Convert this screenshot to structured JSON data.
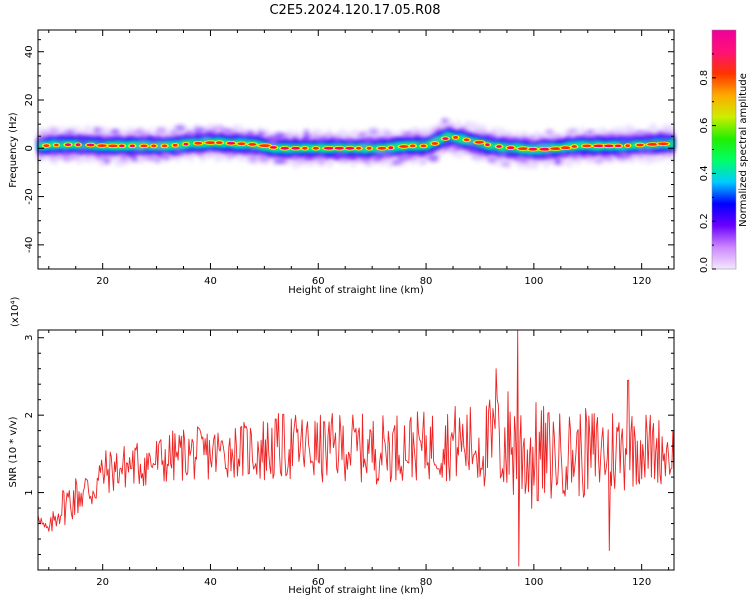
{
  "title": "C2E5.2024.120.17.05.R08",
  "chart_data": [
    {
      "type": "heatmap",
      "xlabel": "Height of straight line (km)",
      "ylabel": "Frequency (Hz)",
      "xlim": [
        8,
        126
      ],
      "ylim": [
        -50,
        49
      ],
      "x_ticks": [
        20,
        40,
        60,
        80,
        100,
        120
      ],
      "y_ticks": [
        -40,
        -20,
        0,
        20,
        40
      ],
      "colorbar": {
        "label": "Normalized spectral amplitude",
        "range": [
          0.0,
          1.0
        ],
        "ticks": [
          0.0,
          0.2,
          0.4,
          0.6,
          0.8
        ],
        "colormap": [
          "#f4e8ff",
          "#cc88ff",
          "#6a00ff",
          "#0000ff",
          "#00ccff",
          "#00ff66",
          "#22ee00",
          "#ccee00",
          "#ffaa00",
          "#ff3300",
          "#ff1177",
          "#ee0099"
        ]
      },
      "ridge": {
        "x": [
          8,
          12,
          16,
          20,
          24,
          28,
          32,
          36,
          40,
          44,
          48,
          52,
          56,
          60,
          64,
          68,
          72,
          76,
          80,
          82,
          84,
          86,
          88,
          92,
          96,
          100,
          104,
          108,
          112,
          116,
          120,
          124,
          126
        ],
        "y": [
          1,
          1.5,
          1.5,
          1,
          1,
          1,
          1,
          2,
          2.5,
          2,
          1.5,
          0,
          0,
          0,
          0,
          0,
          0,
          1,
          1,
          3,
          5,
          4,
          3,
          1,
          0,
          -0.5,
          0,
          1,
          1,
          1,
          1.5,
          2,
          2
        ]
      }
    },
    {
      "type": "line",
      "xlabel": "Height of straight line (km)",
      "ylabel": "SNR (10 * v/v)",
      "y_multiplier": "(x10⁴)",
      "xlim": [
        8,
        126
      ],
      "ylim": [
        0.0,
        3.1
      ],
      "x_ticks": [
        20,
        40,
        60,
        80,
        100,
        120
      ],
      "y_ticks": [
        1,
        2,
        3
      ],
      "series": [
        {
          "color": "#ee2222",
          "x": [
            8,
            9,
            10,
            12,
            14,
            16,
            18,
            20,
            25,
            30,
            35,
            40,
            45,
            50,
            55,
            60,
            65,
            70,
            75,
            80,
            85,
            90,
            95,
            100,
            105,
            110,
            115,
            120,
            126
          ],
          "y": [
            0.75,
            0.55,
            0.5,
            0.8,
            0.9,
            1.0,
            1.05,
            1.25,
            1.35,
            1.4,
            1.5,
            1.5,
            1.55,
            1.55,
            1.6,
            1.55,
            1.6,
            1.55,
            1.6,
            1.6,
            1.65,
            1.6,
            1.65,
            1.45,
            1.5,
            1.5,
            1.55,
            1.6,
            1.5
          ],
          "spread": [
            0.1,
            0.1,
            0.1,
            0.25,
            0.3,
            0.3,
            0.35,
            0.3,
            0.3,
            0.35,
            0.35,
            0.35,
            0.35,
            0.45,
            0.45,
            0.45,
            0.45,
            0.45,
            0.45,
            0.45,
            0.5,
            0.55,
            0.75,
            0.75,
            0.55,
            0.6,
            0.6,
            0.5,
            0.4
          ],
          "peaks": [
            {
              "x": 97,
              "y": 3.1
            },
            {
              "x": 93,
              "y": 2.6
            },
            {
              "x": 97.2,
              "y": 0.05
            },
            {
              "x": 114,
              "y": 0.25
            },
            {
              "x": 117.5,
              "y": 2.45
            }
          ]
        }
      ]
    }
  ]
}
